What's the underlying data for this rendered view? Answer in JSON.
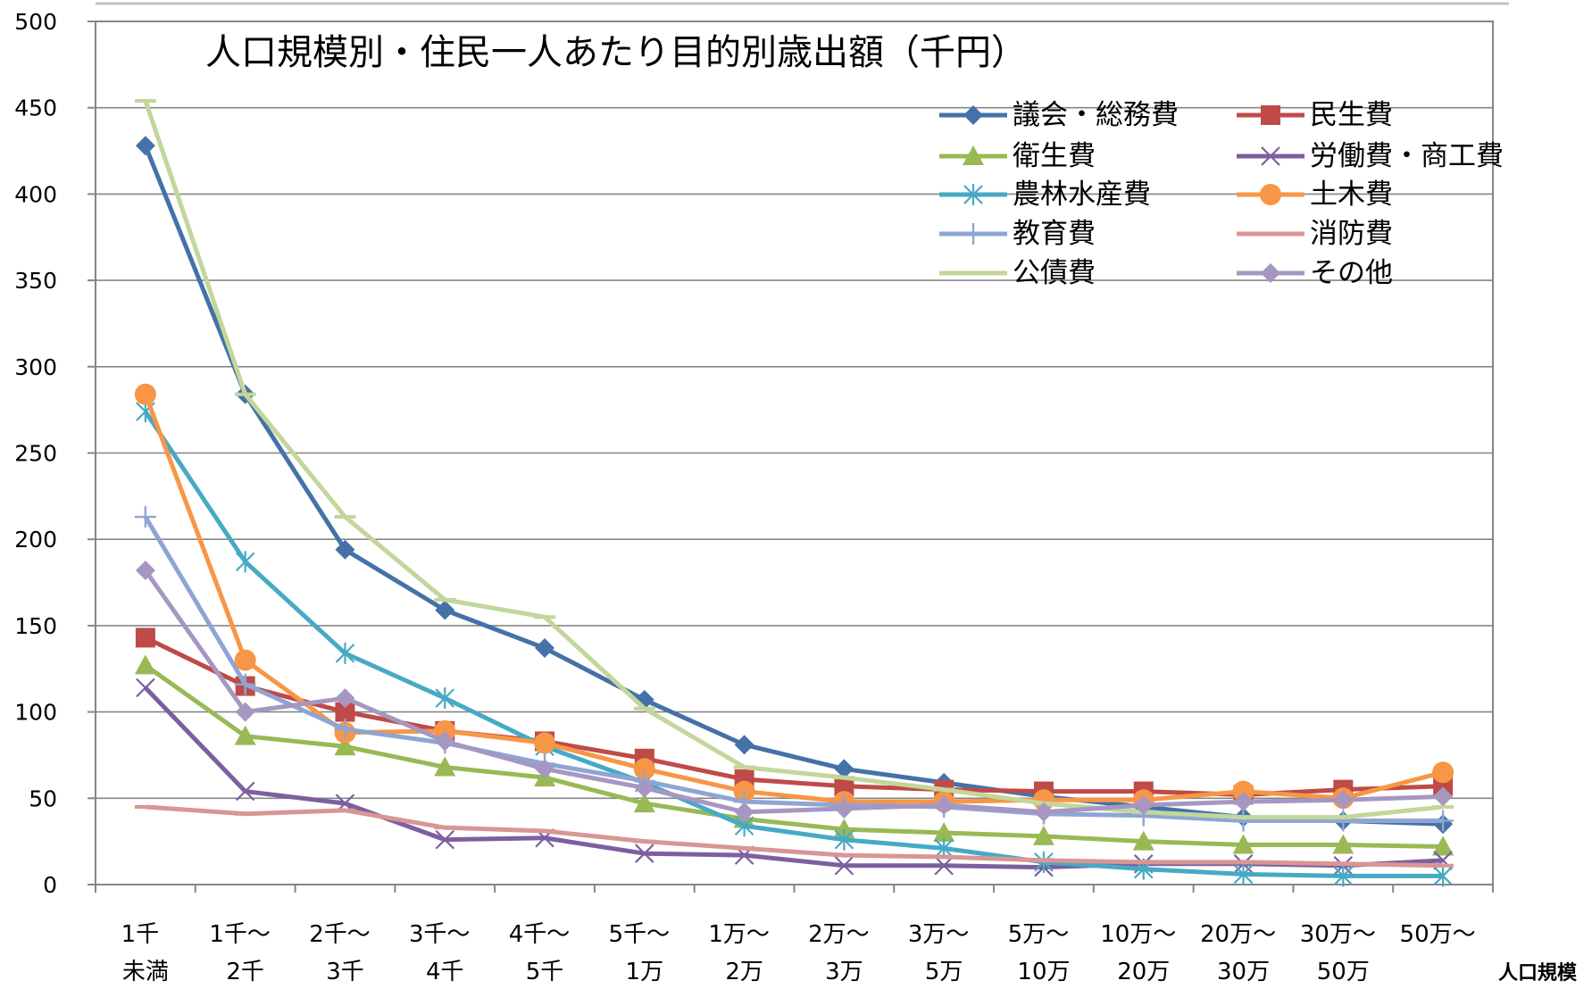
{
  "chart_data": {
    "type": "line",
    "title": "人口規模別・住民一人あたり目的別歳出額（千円）",
    "xlabel": "人口規模",
    "ylabel": "",
    "ylim": [
      0,
      500
    ],
    "yticks": [
      0,
      50,
      100,
      150,
      200,
      250,
      300,
      350,
      400,
      450,
      500
    ],
    "grid": true,
    "legend_position": "top-right",
    "categories": [
      [
        "1千",
        "未満"
      ],
      [
        "1千～",
        "2千"
      ],
      [
        "2千～",
        "3千"
      ],
      [
        "3千～",
        "4千"
      ],
      [
        "4千～",
        "5千"
      ],
      [
        "5千～",
        "1万"
      ],
      [
        "1万～",
        "2万"
      ],
      [
        "2万～",
        "3万"
      ],
      [
        "3万～",
        "5万"
      ],
      [
        "5万～",
        "10万"
      ],
      [
        "10万～",
        "20万"
      ],
      [
        "20万～",
        "30万"
      ],
      [
        "30万～",
        "50万"
      ],
      [
        "50万～",
        ""
      ]
    ],
    "series": [
      {
        "name": "議会・総務費",
        "color": "#4472a8",
        "marker": "diamond",
        "values": [
          428,
          284,
          194,
          159,
          137,
          107,
          81,
          67,
          59,
          51,
          45,
          39,
          37,
          35
        ]
      },
      {
        "name": "民生費",
        "color": "#be4b48",
        "marker": "square",
        "values": [
          143,
          115,
          100,
          89,
          83,
          73,
          61,
          57,
          55,
          54,
          54,
          52,
          55,
          57
        ]
      },
      {
        "name": "衛生費",
        "color": "#98b954",
        "marker": "triangle",
        "values": [
          127,
          86,
          80,
          68,
          62,
          47,
          38,
          32,
          30,
          28,
          25,
          23,
          23,
          22
        ]
      },
      {
        "name": "労働費・商工費",
        "color": "#7d5fa0",
        "marker": "x",
        "values": [
          114,
          54,
          47,
          26,
          27,
          18,
          17,
          11,
          11,
          10,
          12,
          12,
          11,
          14
        ]
      },
      {
        "name": "農林水産費",
        "color": "#46aac4",
        "marker": "star",
        "values": [
          274,
          187,
          134,
          108,
          80,
          59,
          34,
          26,
          21,
          13,
          9,
          6,
          5,
          5
        ]
      },
      {
        "name": "土木費",
        "color": "#f79646",
        "marker": "circle",
        "values": [
          284,
          130,
          88,
          89,
          82,
          67,
          54,
          48,
          48,
          49,
          49,
          54,
          50,
          65
        ]
      },
      {
        "name": "教育費",
        "color": "#8ea5d4",
        "marker": "plus",
        "values": [
          213,
          116,
          90,
          82,
          70,
          60,
          48,
          46,
          45,
          41,
          40,
          37,
          37,
          37
        ]
      },
      {
        "name": "消防費",
        "color": "#d99694",
        "marker": "dash",
        "values": [
          45,
          41,
          43,
          33,
          31,
          25,
          21,
          17,
          16,
          14,
          13,
          13,
          12,
          11
        ]
      },
      {
        "name": "公債費",
        "color": "#c3d69b",
        "marker": "dash",
        "values": [
          454,
          284,
          213,
          165,
          155,
          102,
          68,
          62,
          55,
          47,
          42,
          39,
          39,
          45
        ]
      },
      {
        "name": "その他",
        "color": "#a597c2",
        "marker": "diamond",
        "values": [
          182,
          100,
          108,
          83,
          67,
          56,
          42,
          44,
          46,
          42,
          46,
          48,
          49,
          51
        ]
      }
    ]
  }
}
